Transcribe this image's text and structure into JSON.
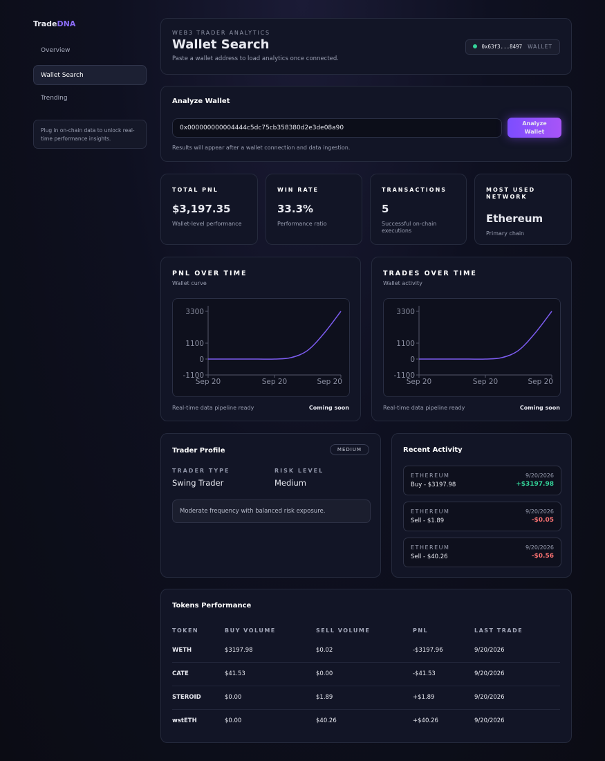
{
  "sidebar": {
    "brand_a": "Trade",
    "brand_b": "DNA",
    "nav": [
      "Overview",
      "Wallet Search",
      "Trending"
    ],
    "note": "Plug in on-chain data to unlock real-time performance insights."
  },
  "header": {
    "eyebrow": "WEB3 TRADER ANALYTICS",
    "title": "Wallet Search",
    "subtitle": "Paste a wallet address to load analytics once connected.",
    "wallet": "0x63f3...8497",
    "wallet_tag": "WALLET"
  },
  "analyze": {
    "title": "Analyze Wallet",
    "input": "0x000000000004444c5dc75cb358380d2e3de08a90",
    "button": "Analyze Wallet",
    "hint": "Results will appear after a wallet connection and data ingestion."
  },
  "stats": [
    {
      "label": "TOTAL PNL",
      "value": "$3,197.35",
      "note": "Wallet-level performance"
    },
    {
      "label": "WIN RATE",
      "value": "33.3%",
      "note": "Performance ratio"
    },
    {
      "label": "TRANSACTIONS",
      "value": "5",
      "note": "Successful on-chain executions"
    },
    {
      "label": "MOST USED NETWORK",
      "value": "Ethereum",
      "note": "Primary chain"
    }
  ],
  "charts": [
    {
      "type": "line",
      "title": "PNL OVER TIME",
      "subtitle": "Wallet curve",
      "categories": [
        "Sep 20",
        null,
        null,
        null,
        "Sep 20",
        null,
        null,
        null,
        "Sep 20"
      ],
      "values": [
        0,
        0,
        0,
        0,
        0,
        100,
        600,
        1800,
        3300
      ],
      "color": "#7c5cf0",
      "ylim": [
        -1100,
        3300
      ],
      "yticks": [
        3300,
        1100,
        0,
        -1100
      ],
      "footer_left": "Real-time data pipeline ready",
      "footer_right": "Coming soon"
    },
    {
      "type": "line",
      "title": "TRADES OVER TIME",
      "subtitle": "Wallet activity",
      "categories": [
        "Sep 20",
        null,
        null,
        null,
        "Sep 20",
        null,
        null,
        null,
        "Sep 20"
      ],
      "values": [
        0,
        0,
        0,
        0,
        0,
        100,
        600,
        1800,
        3300
      ],
      "color": "#7c5cf0",
      "ylim": [
        -1100,
        3300
      ],
      "yticks": [
        3300,
        1100,
        0,
        -1100
      ],
      "footer_left": "Real-time data pipeline ready",
      "footer_right": "Coming soon"
    }
  ],
  "profile": {
    "title": "Trader Profile",
    "badge": "MEDIUM",
    "fields": [
      {
        "label": "TRADER TYPE",
        "value": "Swing Trader"
      },
      {
        "label": "RISK LEVEL",
        "value": "Medium"
      }
    ],
    "description": "Moderate frequency with balanced risk exposure."
  },
  "activity": {
    "title": "Recent Activity",
    "items": [
      {
        "network": "ETHEREUM",
        "date": "9/20/2026",
        "action": "Buy - $3197.98",
        "pnl": "+$3197.98"
      },
      {
        "network": "ETHEREUM",
        "date": "9/20/2026",
        "action": "Sell - $1.89",
        "pnl": "-$0.05"
      },
      {
        "network": "ETHEREUM",
        "date": "9/20/2026",
        "action": "Sell - $40.26",
        "pnl": "-$0.56"
      }
    ]
  },
  "tokens": {
    "title": "Tokens Performance",
    "columns": [
      "TOKEN",
      "BUY VOLUME",
      "SELL VOLUME",
      "PNL",
      "LAST TRADE"
    ],
    "rows": [
      [
        "WETH",
        "$3197.98",
        "$0.02",
        "-$3197.96",
        "9/20/2026"
      ],
      [
        "CATE",
        "$41.53",
        "$0.00",
        "-$41.53",
        "9/20/2026"
      ],
      [
        "STEROID",
        "$0.00",
        "$1.89",
        "+$1.89",
        "9/20/2026"
      ],
      [
        "wstETH",
        "$0.00",
        "$40.26",
        "+$40.26",
        "9/20/2026"
      ]
    ]
  }
}
